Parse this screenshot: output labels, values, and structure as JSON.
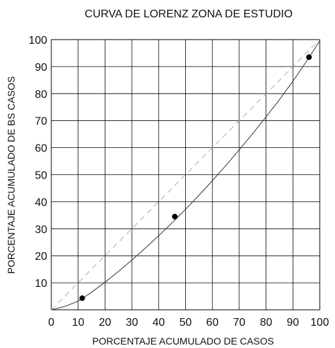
{
  "chart_data": {
    "type": "scatter",
    "title": "CURVA DE LORENZ ZONA DE ESTUDIO",
    "xlabel": "PORCENTAJE ACUMULADO DE CASOS",
    "ylabel": "PORCENTAJE ACUMULADO DE BS CASOS",
    "xlim": [
      0,
      100
    ],
    "ylim": [
      0,
      100
    ],
    "x_ticks": [
      "0",
      "10",
      "20",
      "30",
      "40",
      "50",
      "60",
      "70",
      "80",
      "90",
      "100"
    ],
    "y_ticks": [
      "10",
      "20",
      "30",
      "40",
      "50",
      "60",
      "70",
      "80",
      "90",
      "100"
    ],
    "grid": true,
    "legend": "none",
    "series": [
      {
        "type": "scatter",
        "x": [
          11.5,
          46,
          96
        ],
        "y": [
          4.3,
          34.5,
          93.5
        ],
        "color": "#000000"
      },
      {
        "type": "line",
        "x": [
          0,
          5,
          10,
          15,
          20,
          25,
          30,
          35,
          40,
          45,
          50,
          55,
          60,
          65,
          70,
          75,
          80,
          85,
          90,
          95,
          100
        ],
        "y": [
          0,
          1.2,
          3.2,
          6.5,
          10.2,
          14.2,
          18.4,
          22.8,
          27.4,
          32.2,
          37.2,
          42.4,
          47.8,
          53.4,
          59.2,
          65.2,
          71.4,
          77.8,
          84.6,
          91.8,
          99.5
        ],
        "color": "#333333",
        "style": "solid"
      },
      {
        "type": "line",
        "x": [
          0,
          100
        ],
        "y": [
          0,
          100
        ],
        "color": "#aaaaaa",
        "style": "dashed"
      }
    ]
  }
}
